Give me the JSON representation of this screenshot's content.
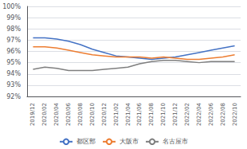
{
  "chart_data": {
    "type": "line",
    "categories": [
      "2019/12",
      "2020/02",
      "2020/04",
      "2020/06",
      "2020/08",
      "2020/10",
      "2020/12",
      "2021/02",
      "2021/04",
      "2021/06",
      "2021/08",
      "2021/10",
      "2021/12",
      "2022/02",
      "2022/04",
      "2022/06",
      "2022/08",
      "2022/10"
    ],
    "series": [
      {
        "name": "都区部",
        "color": "#4472C4",
        "values": [
          97.2,
          97.2,
          97.1,
          96.9,
          96.6,
          96.2,
          95.9,
          95.6,
          95.5,
          95.4,
          95.3,
          95.4,
          95.5,
          95.7,
          95.9,
          96.1,
          96.3,
          96.5
        ]
      },
      {
        "name": "大阪市",
        "color": "#ED7D31",
        "values": [
          96.4,
          96.4,
          96.3,
          96.1,
          95.9,
          95.7,
          95.6,
          95.5,
          95.5,
          95.5,
          95.4,
          95.5,
          95.4,
          95.3,
          95.3,
          95.4,
          95.5,
          95.7
        ]
      },
      {
        "name": "名古屋市",
        "color": "#7F7F7F",
        "values": [
          94.4,
          94.6,
          94.5,
          94.3,
          94.3,
          94.3,
          94.4,
          94.5,
          94.6,
          94.9,
          95.1,
          95.2,
          95.2,
          95.1,
          95.0,
          95.1,
          95.1,
          95.1
        ]
      }
    ],
    "ylim": [
      92,
      100
    ],
    "yticks": [
      {
        "value": 92,
        "label": "92%"
      },
      {
        "value": 93,
        "label": "93%"
      },
      {
        "value": 94,
        "label": "94%"
      },
      {
        "value": 95,
        "label": "95%"
      },
      {
        "value": 96,
        "label": "96%"
      },
      {
        "value": 97,
        "label": "97%"
      },
      {
        "value": 98,
        "label": "98%"
      },
      {
        "value": 99,
        "label": "99%"
      },
      {
        "value": 100,
        "label": "100%"
      }
    ],
    "grid": true,
    "legend": "bottom"
  }
}
